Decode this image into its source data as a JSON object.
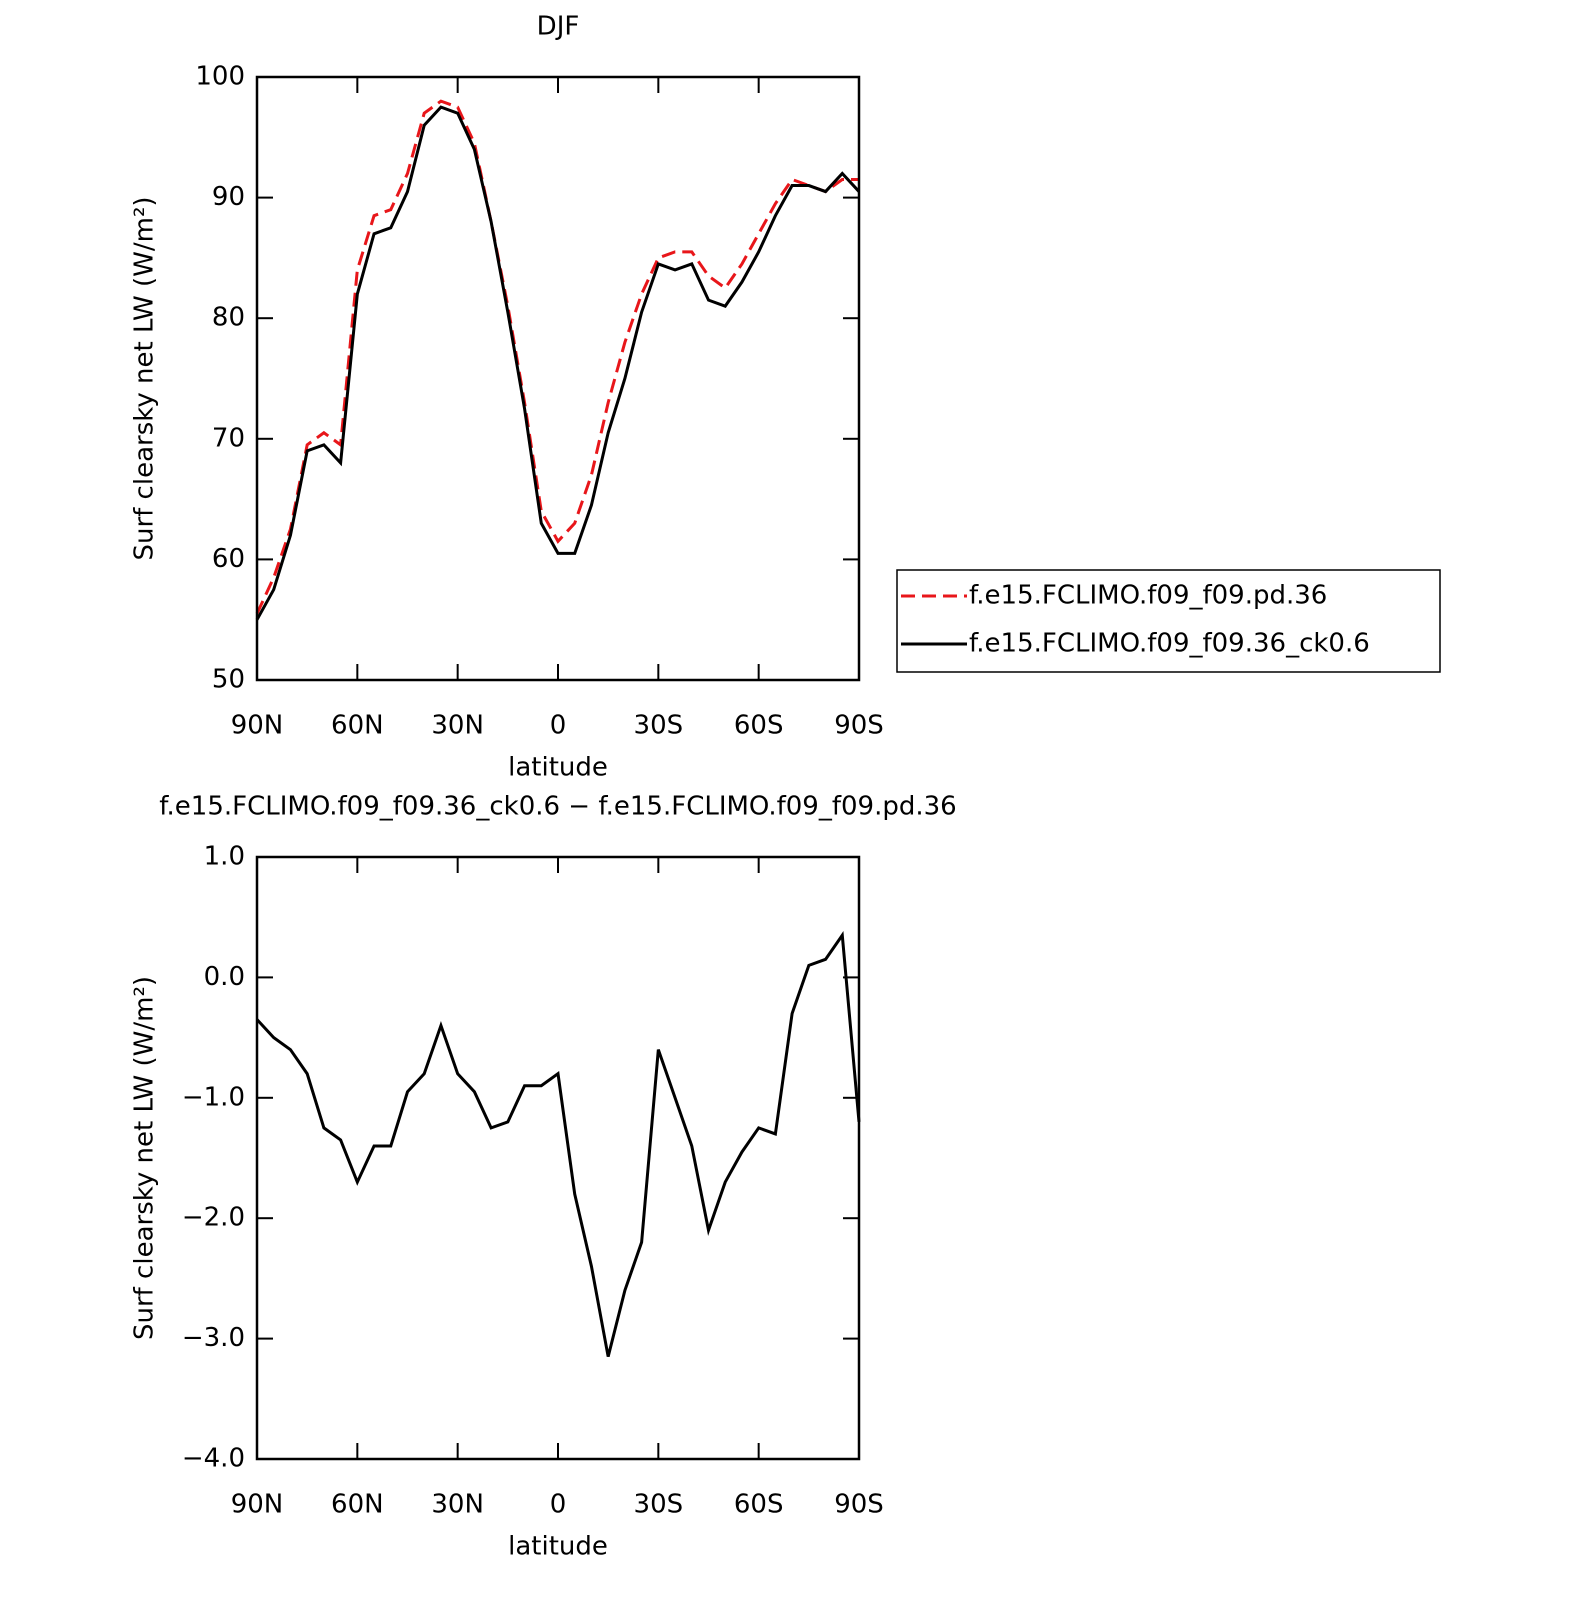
{
  "chart_data": [
    {
      "type": "line",
      "title": "DJF",
      "xlabel": "latitude",
      "ylabel": "Surf clearsky net LW (W/m²)",
      "x": [
        90,
        85,
        80,
        75,
        70,
        65,
        60,
        55,
        50,
        45,
        40,
        35,
        30,
        25,
        20,
        15,
        10,
        5,
        0,
        -5,
        -10,
        -15,
        -20,
        -25,
        -30,
        -35,
        -40,
        -45,
        -50,
        -55,
        -60,
        -65,
        -70,
        -75,
        -80,
        -85,
        -90
      ],
      "series": [
        {
          "name": "f.e15.FCLIMO.f09_f09.pd.36",
          "color": "#e8161a",
          "linestyle": "dashed",
          "values": [
            55.5,
            58.5,
            62.5,
            69.5,
            70.5,
            69.5,
            84,
            88.5,
            89,
            92,
            97,
            98,
            97.5,
            94.5,
            88,
            81,
            73,
            64,
            61.5,
            63,
            67,
            73,
            78,
            82,
            85,
            85.5,
            85.5,
            83.5,
            82.5,
            84.5,
            87,
            89.5,
            91.5,
            91,
            90.5,
            91.5,
            91.5
          ]
        },
        {
          "name": "f.e15.FCLIMO.f09_f09.36_ck0.6",
          "color": "#000000",
          "linestyle": "solid",
          "values": [
            55,
            57.5,
            62,
            69,
            69.5,
            68,
            82,
            87,
            87.5,
            90.5,
            96,
            97.5,
            97,
            94,
            88,
            80.5,
            72.5,
            63,
            60.5,
            60.5,
            64.5,
            70.5,
            75,
            80.5,
            84.5,
            84,
            84.5,
            81.5,
            81,
            83,
            85.5,
            88.5,
            91,
            91,
            90.5,
            92,
            90.5
          ]
        }
      ],
      "xlim": [
        90,
        -90
      ],
      "xticks": [
        {
          "value": 90,
          "label": "90N"
        },
        {
          "value": 60,
          "label": "60N"
        },
        {
          "value": 30,
          "label": "30N"
        },
        0,
        {
          "value": -30,
          "label": "30S"
        },
        {
          "value": -60,
          "label": "60S"
        },
        {
          "value": -90,
          "label": "90S"
        }
      ],
      "ylim": [
        50,
        100
      ],
      "yticks": [
        50,
        60,
        70,
        80,
        90,
        100
      ],
      "legend": "outside-right"
    },
    {
      "type": "line",
      "title": "f.e15.FCLIMO.f09_f09.36_ck0.6 − f.e15.FCLIMO.f09_f09.pd.36",
      "xlabel": "latitude",
      "ylabel": "Surf clearsky net LW (W/m²)",
      "x": [
        90,
        85,
        80,
        75,
        70,
        65,
        60,
        55,
        50,
        45,
        40,
        35,
        30,
        25,
        20,
        15,
        10,
        5,
        0,
        -5,
        -10,
        -15,
        -20,
        -25,
        -30,
        -35,
        -40,
        -45,
        -50,
        -55,
        -60,
        -65,
        -70,
        -75,
        -80,
        -85,
        -90
      ],
      "series": [
        {
          "color": "#000000",
          "linestyle": "solid",
          "values": [
            -0.35,
            -0.5,
            -0.6,
            -0.8,
            -1.25,
            -1.35,
            -1.7,
            -1.4,
            -1.4,
            -0.95,
            -0.8,
            -0.4,
            -0.8,
            -0.95,
            -1.25,
            -1.2,
            -0.9,
            -0.9,
            -0.8,
            -1.8,
            -2.4,
            -3.15,
            -2.6,
            -2.2,
            -0.6,
            -1.0,
            -1.4,
            -2.1,
            -1.7,
            -1.45,
            -1.25,
            -1.3,
            -0.3,
            0.1,
            0.15,
            0.35,
            -1.2
          ]
        }
      ],
      "xlim": [
        90,
        -90
      ],
      "xticks": [
        {
          "value": 90,
          "label": "90N"
        },
        {
          "value": 60,
          "label": "60N"
        },
        {
          "value": 30,
          "label": "30N"
        },
        0,
        {
          "value": -30,
          "label": "30S"
        },
        {
          "value": -60,
          "label": "60S"
        },
        {
          "value": -90,
          "label": "90S"
        }
      ],
      "ylim": [
        -4,
        1
      ],
      "yticks": [
        {
          "value": -4,
          "label": "−4.0"
        },
        {
          "value": -3,
          "label": "−3.0"
        },
        {
          "value": -2,
          "label": "−2.0"
        },
        {
          "value": -1,
          "label": "−1.0"
        },
        {
          "value": 0,
          "label": "0.0"
        },
        {
          "value": 1,
          "label": "1.0"
        }
      ]
    }
  ]
}
